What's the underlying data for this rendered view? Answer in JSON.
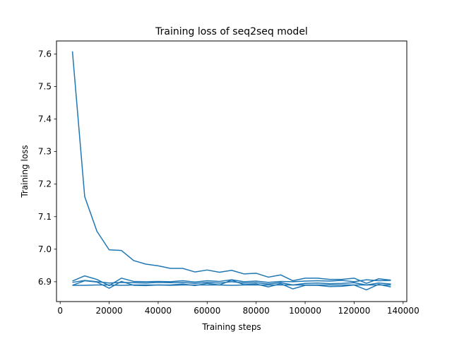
{
  "chart_data": {
    "type": "line",
    "title": "Training loss of seq2seq model",
    "xlabel": "Training steps",
    "ylabel": "Training loss",
    "xlim": [
      -1500,
      141500
    ],
    "ylim": [
      6.839,
      7.64
    ],
    "xticks": [
      0,
      20000,
      40000,
      60000,
      80000,
      100000,
      120000,
      140000
    ],
    "xtick_labels": [
      "0",
      "20000",
      "40000",
      "60000",
      "80000",
      "100000",
      "120000",
      "140000"
    ],
    "yticks": [
      6.9,
      7.0,
      7.1,
      7.2,
      7.3,
      7.4,
      7.5,
      7.6
    ],
    "ytick_labels": [
      "6.9",
      "7.0",
      "7.1",
      "7.2",
      "7.3",
      "7.4",
      "7.5",
      "7.6"
    ],
    "grid": false,
    "color": "#1f77b4",
    "series": [
      {
        "x": [
          5000,
          10000,
          15000,
          20000,
          25000,
          30000,
          35000,
          40000,
          45000,
          50000,
          55000,
          60000,
          65000,
          70000,
          75000,
          80000,
          85000,
          90000,
          95000,
          100000,
          105000,
          110000,
          115000,
          120000,
          125000,
          130000,
          135000
        ],
        "values": [
          7.608,
          7.162,
          7.055,
          6.998,
          6.996,
          6.965,
          6.954,
          6.949,
          6.941,
          6.941,
          6.93,
          6.936,
          6.929,
          6.935,
          6.924,
          6.926,
          6.914,
          6.921,
          6.903,
          6.911,
          6.911,
          6.907,
          6.907,
          6.911,
          6.895,
          6.909,
          6.905
        ]
      },
      {
        "x": [
          5000,
          10000,
          15000,
          20000,
          25000,
          30000,
          35000,
          40000,
          45000,
          50000,
          55000,
          60000,
          65000,
          70000,
          75000,
          80000,
          85000,
          90000,
          95000,
          100000,
          105000,
          110000,
          115000,
          120000,
          125000,
          130000,
          135000
        ],
        "values": [
          6.902,
          6.918,
          6.907,
          6.888,
          6.911,
          6.901,
          6.9,
          6.901,
          6.9,
          6.903,
          6.899,
          6.903,
          6.901,
          6.906,
          6.9,
          6.902,
          6.898,
          6.901,
          6.9,
          6.902,
          6.903,
          6.902,
          6.904,
          6.9,
          6.906,
          6.903,
          6.904
        ]
      },
      {
        "x": [
          5000,
          10000,
          15000,
          20000,
          25000,
          30000,
          35000,
          40000,
          45000,
          50000,
          55000,
          60000,
          65000,
          70000,
          75000,
          80000,
          85000,
          90000,
          95000,
          100000,
          105000,
          110000,
          115000,
          120000,
          125000,
          130000,
          135000
        ],
        "values": [
          6.889,
          6.903,
          6.899,
          6.88,
          6.901,
          6.889,
          6.888,
          6.89,
          6.89,
          6.893,
          6.888,
          6.895,
          6.89,
          6.905,
          6.891,
          6.893,
          6.884,
          6.894,
          6.878,
          6.889,
          6.889,
          6.885,
          6.886,
          6.89,
          6.875,
          6.892,
          6.884
        ]
      },
      {
        "x": [
          5000,
          10000,
          15000,
          20000,
          25000,
          30000,
          35000,
          40000,
          45000,
          50000,
          55000,
          60000,
          65000,
          70000,
          75000,
          80000,
          85000,
          90000,
          95000,
          100000,
          105000,
          110000,
          115000,
          120000,
          125000,
          130000,
          135000
        ],
        "values": [
          6.898,
          6.904,
          6.9,
          6.896,
          6.898,
          6.897,
          6.896,
          6.898,
          6.897,
          6.898,
          6.895,
          6.898,
          6.896,
          6.9,
          6.896,
          6.897,
          6.893,
          6.897,
          6.89,
          6.895,
          6.896,
          6.894,
          6.895,
          6.897,
          6.89,
          6.896,
          6.893
        ]
      },
      {
        "x": [
          5000,
          10000,
          15000,
          20000,
          25000,
          30000,
          35000,
          40000,
          45000,
          50000,
          55000,
          60000,
          65000,
          70000,
          75000,
          80000,
          85000,
          90000,
          95000,
          100000,
          105000,
          110000,
          115000,
          120000,
          125000,
          130000,
          135000
        ],
        "values": [
          6.889,
          6.889,
          6.89,
          6.89,
          6.889,
          6.89,
          6.89,
          6.89,
          6.889,
          6.89,
          6.89,
          6.89,
          6.89,
          6.889,
          6.89,
          6.89,
          6.89,
          6.89,
          6.89,
          6.89,
          6.89,
          6.89,
          6.89,
          6.89,
          6.89,
          6.89,
          6.89
        ]
      }
    ]
  }
}
